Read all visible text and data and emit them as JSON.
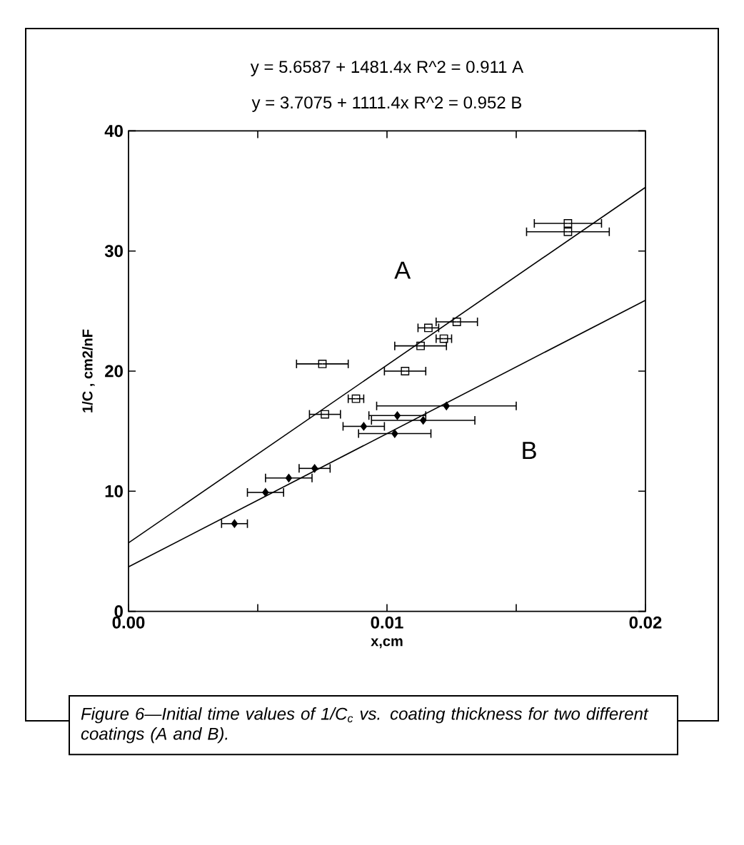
{
  "chart_data": {
    "type": "scatter",
    "xlabel": "x,cm",
    "ylabel": "1/C , cm2/nF",
    "xlim": [
      0,
      0.02
    ],
    "ylim": [
      0,
      40
    ],
    "xticks": [
      {
        "value": 0,
        "label": "0.00"
      },
      {
        "value": 0.005,
        "label": null
      },
      {
        "value": 0.01,
        "label": "0.01"
      },
      {
        "value": 0.015,
        "label": null
      },
      {
        "value": 0.02,
        "label": "0.02"
      }
    ],
    "yticks": [
      0,
      10,
      20,
      30,
      40
    ],
    "grid": false,
    "series": [
      {
        "marker": "square",
        "color": "#000000",
        "x": [
          0.017,
          0.017,
          0.0127,
          0.0116,
          0.0122,
          0.0113,
          0.0075,
          0.0107,
          0.0088,
          0.0076
        ],
        "values": [
          32.3,
          31.6,
          24.1,
          23.6,
          22.7,
          22.1,
          20.6,
          20.0,
          17.7,
          16.4
        ],
        "xerrors": [
          0.0013,
          0.0016,
          0.0008,
          0.0004,
          0.0003,
          0.001,
          0.001,
          0.0008,
          0.0003,
          0.0006
        ]
      },
      {
        "marker": "diamond",
        "color": "#000000",
        "x": [
          0.0123,
          0.0104,
          0.0114,
          0.0091,
          0.0103,
          0.0072,
          0.0062,
          0.0053,
          0.0041
        ],
        "values": [
          17.1,
          16.3,
          15.9,
          15.4,
          14.8,
          11.9,
          11.1,
          9.9,
          7.3
        ],
        "xerrors": [
          0.0027,
          0.0011,
          0.002,
          0.0008,
          0.0014,
          0.0006,
          0.0009,
          0.0007,
          0.0005
        ]
      },
      {
        "type": "line",
        "marker": "none",
        "color": "#000000",
        "x": [
          0,
          0.02
        ],
        "values": [
          5.7,
          35.3
        ]
      },
      {
        "type": "line",
        "marker": "none",
        "color": "#000000",
        "x": [
          0,
          0.02
        ],
        "values": [
          3.7,
          25.9
        ]
      }
    ],
    "annotations": [
      "y = 5.6587 + 1481.4x   R^2 = 0.911   A",
      "y = 3.7075 + 1111.4x   R^2 = 0.952   B",
      "A",
      "B",
      "Figure 6—Initial time values of 1/C$_{c}$ vs. coating thickness for two different coatings (A and B)."
    ]
  }
}
